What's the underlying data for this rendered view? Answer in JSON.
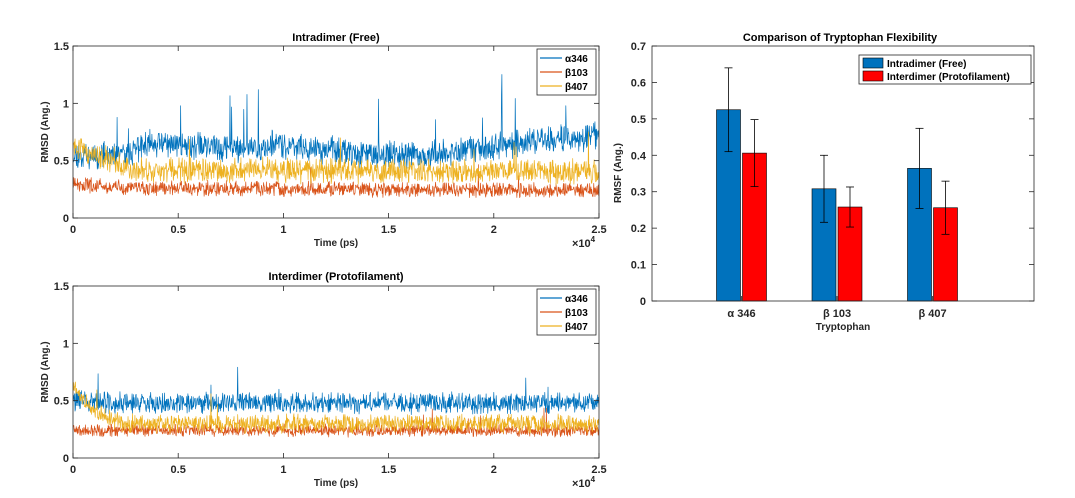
{
  "figure": {
    "background": "#ffffff"
  },
  "chart_data": [
    {
      "type": "line",
      "title": "Intradimer (Free)",
      "xlabel": "Time (ps)",
      "ylabel": "RMSD (Ang.)",
      "xlim": [
        0,
        25000
      ],
      "ylim": [
        0,
        1.5
      ],
      "xticks": [
        0,
        5000,
        10000,
        15000,
        20000,
        25000
      ],
      "xtick_labels": [
        "0",
        "0.5",
        "1",
        "1.5",
        "2",
        "2.5"
      ],
      "yticks": [
        0,
        0.5,
        1,
        1.5
      ],
      "ytick_labels": [
        "0",
        "0.5",
        "1",
        "1.5"
      ],
      "x_exponent": "×10",
      "x_exponent_power": "4",
      "legend_position": "top-right",
      "series": [
        {
          "name": "α346",
          "color": "#0072BD",
          "mean_profile": [
            [
              0,
              0.55
            ],
            [
              2500,
              0.55
            ],
            [
              3500,
              0.65
            ],
            [
              9000,
              0.6
            ],
            [
              9500,
              0.65
            ],
            [
              14000,
              0.55
            ],
            [
              17000,
              0.55
            ],
            [
              20000,
              0.62
            ],
            [
              22000,
              0.68
            ],
            [
              25000,
              0.72
            ]
          ],
          "noise": 0.09,
          "spike_rate": 0.015,
          "spike_height": 0.35,
          "floor": 0.22
        },
        {
          "name": "β103",
          "color": "#D95319",
          "mean_profile": [
            [
              0,
              0.3
            ],
            [
              3000,
              0.26
            ],
            [
              25000,
              0.24
            ]
          ],
          "noise": 0.05,
          "spike_rate": 0.004,
          "spike_height": 0.2,
          "floor": 0.12
        },
        {
          "name": "β407",
          "color": "#EDB120",
          "mean_profile": [
            [
              0,
              0.62
            ],
            [
              1500,
              0.5
            ],
            [
              3000,
              0.42
            ],
            [
              25000,
              0.4
            ]
          ],
          "noise": 0.08,
          "spike_rate": 0.006,
          "spike_height": 0.25,
          "floor": 0.18
        }
      ],
      "samples": 1300,
      "seed": 11
    },
    {
      "type": "line",
      "title": "Interdimer (Protofilament)",
      "xlabel": "Time (ps)",
      "ylabel": "RMSD (Ang.)",
      "xlim": [
        0,
        25000
      ],
      "ylim": [
        0,
        1.5
      ],
      "xticks": [
        0,
        5000,
        10000,
        15000,
        20000,
        25000
      ],
      "xtick_labels": [
        "0",
        "0.5",
        "1",
        "1.5",
        "2",
        "2.5"
      ],
      "yticks": [
        0,
        0.5,
        1,
        1.5
      ],
      "ytick_labels": [
        "0",
        "0.5",
        "1",
        "1.5"
      ],
      "x_exponent": "×10",
      "x_exponent_power": "4",
      "legend_position": "top-right",
      "series": [
        {
          "name": "α346",
          "color": "#0072BD",
          "mean_profile": [
            [
              0,
              0.5
            ],
            [
              2000,
              0.48
            ],
            [
              25000,
              0.48
            ]
          ],
          "noise": 0.07,
          "spike_rate": 0.008,
          "spike_height": 0.2,
          "floor": 0.2
        },
        {
          "name": "β103",
          "color": "#D95319",
          "mean_profile": [
            [
              0,
              0.24
            ],
            [
              25000,
              0.24
            ]
          ],
          "noise": 0.04,
          "spike_rate": 0.004,
          "spike_height": 0.15,
          "floor": 0.12
        },
        {
          "name": "β407",
          "color": "#EDB120",
          "mean_profile": [
            [
              0,
              0.62
            ],
            [
              1000,
              0.4
            ],
            [
              2500,
              0.3
            ],
            [
              25000,
              0.3
            ]
          ],
          "noise": 0.06,
          "spike_rate": 0.005,
          "spike_height": 0.2,
          "floor": 0.14
        }
      ],
      "samples": 1300,
      "seed": 29
    },
    {
      "type": "bar",
      "title": "Comparison of Tryptophan Flexibility",
      "xlabel": "Tryptophan",
      "ylabel": "RMSF (Ang.)",
      "categories": [
        "α 346",
        "β 103",
        "β 407"
      ],
      "ylim": [
        0,
        0.7
      ],
      "yticks": [
        0,
        0.1,
        0.2,
        0.3,
        0.4,
        0.5,
        0.6,
        0.7
      ],
      "ytick_labels": [
        "0",
        "0.1",
        "0.2",
        "0.3",
        "0.4",
        "0.5",
        "0.6",
        "0.7"
      ],
      "legend_position": "top-right",
      "series": [
        {
          "name": "Intradimer (Free)",
          "color": "#0072BD",
          "values": [
            0.525,
            0.308,
            0.364
          ],
          "errors": [
            0.115,
            0.092,
            0.11
          ]
        },
        {
          "name": "Interdimer (Protofilament)",
          "color": "#FF0000",
          "values": [
            0.406,
            0.258,
            0.256
          ],
          "errors": [
            0.092,
            0.055,
            0.073
          ]
        }
      ]
    }
  ]
}
